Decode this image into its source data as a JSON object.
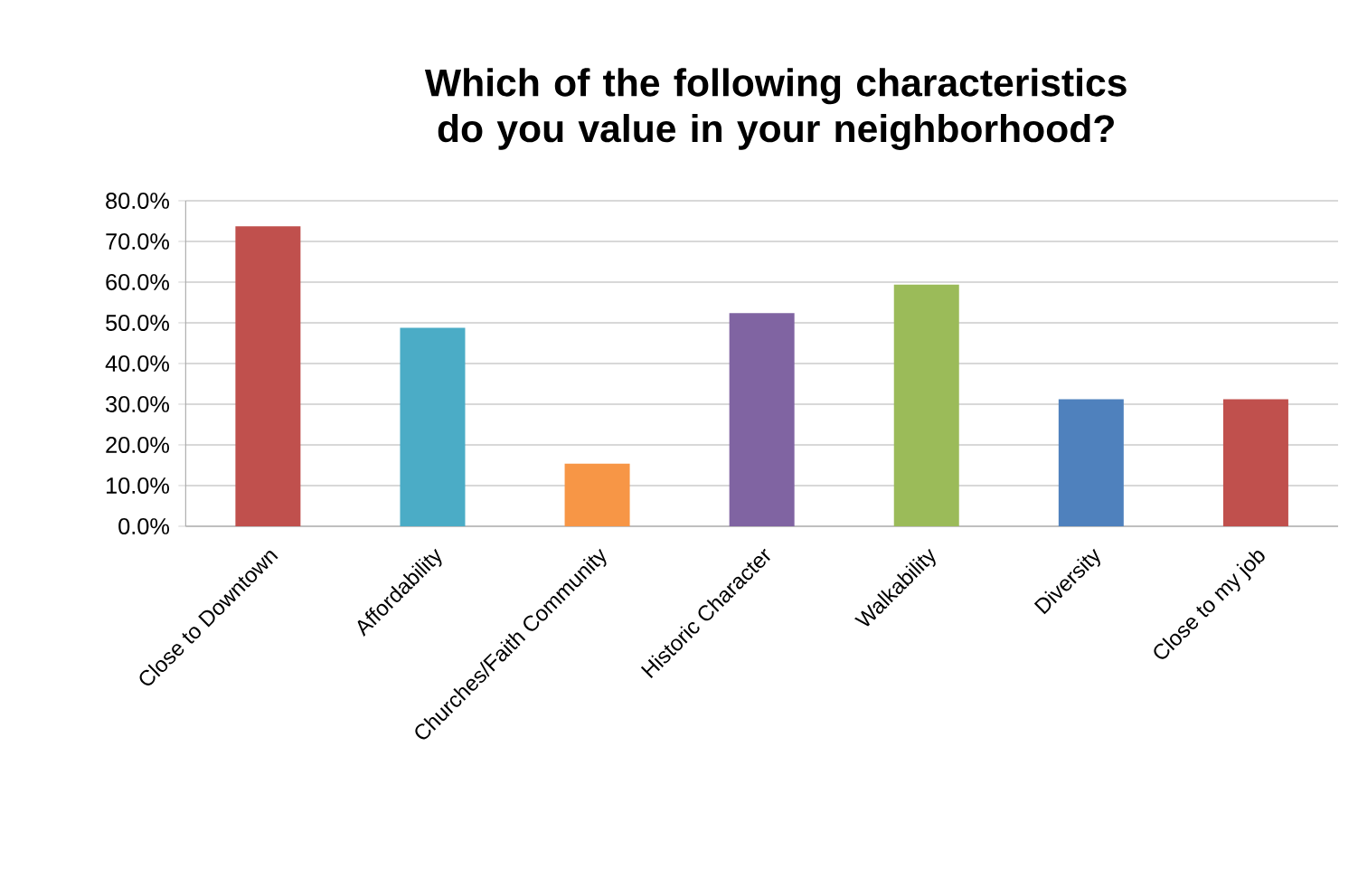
{
  "chart_data": {
    "type": "bar",
    "title": "Which of the following characteristics do you value in your neighborhood?",
    "categories": [
      "Close to Downtown",
      "Affordability",
      "Churches/Faith Community",
      "Historic Character",
      "Walkability",
      "Diversity",
      "Close to my job"
    ],
    "values": [
      73.7,
      48.8,
      15.4,
      52.4,
      59.4,
      31.2,
      31.2
    ],
    "colors": [
      "#c0504d",
      "#4bacc6",
      "#f79646",
      "#8064a2",
      "#9bbb59",
      "#4f81bd",
      "#c0504d"
    ],
    "ylim": [
      0,
      80
    ],
    "yticks": [
      {
        "value": 0,
        "label": "0.0%"
      },
      {
        "value": 10,
        "label": "10.0%"
      },
      {
        "value": 20,
        "label": "20.0%"
      },
      {
        "value": 30,
        "label": "30.0%"
      },
      {
        "value": 40,
        "label": "40.0%"
      },
      {
        "value": 50,
        "label": "50.0%"
      },
      {
        "value": 60,
        "label": "60.0%"
      },
      {
        "value": 70,
        "label": "70.0%"
      },
      {
        "value": 80,
        "label": "80.0%"
      }
    ],
    "grid": "y"
  }
}
